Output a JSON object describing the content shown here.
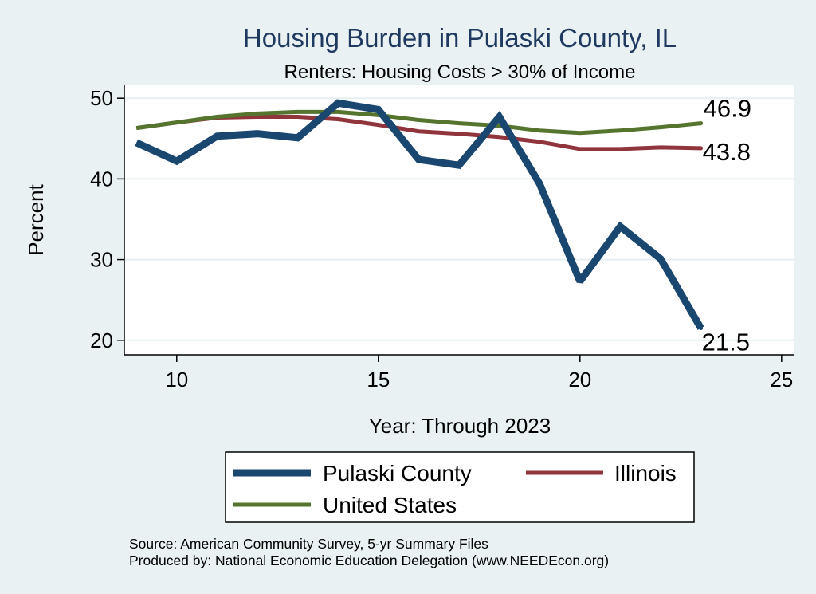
{
  "chart_data": {
    "type": "line",
    "title": "Housing Burden in Pulaski County, IL",
    "subtitle": "Renters: Housing Costs > 30% of Income",
    "xlabel": "Year: Through 2023",
    "ylabel": "Percent",
    "xlim": [
      8.7,
      25.3
    ],
    "ylim": [
      18.2,
      51.6
    ],
    "xticks": [
      10,
      15,
      20,
      25
    ],
    "yticks": [
      20,
      30,
      40,
      50
    ],
    "grid": true,
    "x": [
      9,
      10,
      11,
      12,
      13,
      14,
      15,
      16,
      17,
      18,
      19,
      20,
      21,
      22,
      23
    ],
    "series": [
      {
        "name": "Pulaski County",
        "color": "#1a476f",
        "values": [
          44.5,
          42.2,
          45.3,
          45.6,
          45.1,
          49.4,
          48.6,
          42.4,
          41.7,
          47.7,
          39.4,
          27.3,
          34.1,
          30.1,
          21.5
        ],
        "end_label": "21.5"
      },
      {
        "name": "Illinois",
        "color": "#90353b",
        "values": [
          46.3,
          47.0,
          47.6,
          47.7,
          47.7,
          47.4,
          46.7,
          45.9,
          45.6,
          45.2,
          44.6,
          43.7,
          43.7,
          43.9,
          43.8
        ],
        "end_label": "43.8"
      },
      {
        "name": "United States",
        "color": "#55752f",
        "values": [
          46.3,
          47.0,
          47.7,
          48.1,
          48.3,
          48.3,
          47.9,
          47.3,
          46.9,
          46.6,
          46.0,
          45.7,
          46.0,
          46.4,
          46.9
        ],
        "end_label": "46.9"
      }
    ],
    "legend_position": "bottom",
    "source": "Source: American Community Survey, 5-yr Summary Files",
    "producer": "Produced by: National Economic Education Delegation (www.NEEDEcon.org)"
  }
}
